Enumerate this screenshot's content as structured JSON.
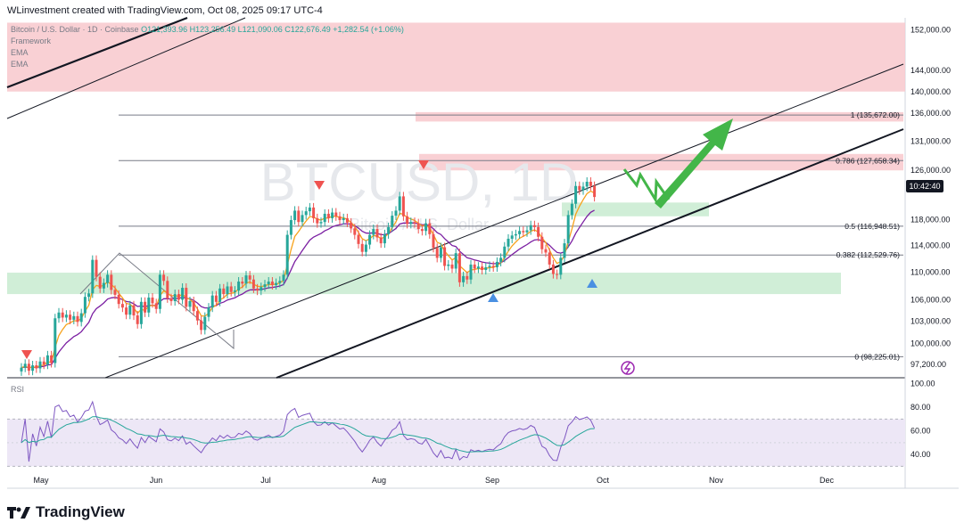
{
  "header": {
    "credit": "WLinvestment created with TradingView.com, Oct 08, 2025 09:17 UTC-4"
  },
  "legend": {
    "symbol": "Bitcoin / U.S. Dollar · 1D · Coinbase",
    "ohlc": "O121,393.96 H123,256.49 L121,090.06 C122,676.49 +1,282.54 (+1.06%)",
    "indicators": [
      "Framework",
      "EMA",
      "EMA"
    ]
  },
  "watermark": "BTCUSD, 1D",
  "watermark_sub": "Bitcoin / U.S. Dollar",
  "current_time_badge": "10:42:40",
  "rsi_label": "RSI",
  "brand": "TradingView",
  "colors": {
    "up": "#26a69a",
    "down": "#ef5350",
    "ema_fast": "#f7a21b",
    "ema_slow": "#7b1fa2",
    "supply": "#f8c8cc",
    "demand": "#c8ebd0",
    "arrow": "#43b649",
    "rsi": "#7e57c2",
    "rsi_ma": "#26a69a"
  },
  "chart_data": {
    "type": "candlestick",
    "price_axis": {
      "ticks": [
        152000,
        144000,
        140000,
        136000,
        131000,
        126000,
        118000,
        114000,
        110000,
        106000,
        103000,
        100000,
        97200
      ],
      "tick_labels": [
        "152,000.00",
        "144,000.00",
        "140,000.00",
        "136,000.00",
        "131,000.00",
        "126,000.00",
        "118,000.00",
        "114,000.00",
        "110,000.00",
        "106,000.00",
        "103,000.00",
        "100,000.00",
        "97,200.00"
      ],
      "range": [
        95500,
        154500
      ]
    },
    "time_axis": {
      "labels": [
        "May",
        "Jun",
        "Jul",
        "Aug",
        "Sep",
        "Oct",
        "Nov",
        "Dec"
      ]
    },
    "fibonacci": [
      {
        "level": "1",
        "price": 135672.0,
        "label": "1 (135,672.00)"
      },
      {
        "level": "0.786",
        "price": 127658.34,
        "label": "0.786 (127,658.34)"
      },
      {
        "level": "0.5",
        "price": 116948.51,
        "label": "0.5 (116,948.51)"
      },
      {
        "level": "0.382",
        "price": 112529.76,
        "label": "0.382 (112,529.76)"
      },
      {
        "level": "0",
        "price": 98225.01,
        "label": "0 (98,225.01)"
      }
    ],
    "zones": [
      {
        "kind": "supply",
        "from": 140000,
        "to": 153500
      },
      {
        "kind": "supply",
        "from": 134500,
        "to": 136200
      },
      {
        "kind": "supply",
        "from": 126000,
        "to": 128800
      },
      {
        "kind": "demand",
        "from": 106800,
        "to": 109900
      },
      {
        "kind": "demand",
        "from": 118500,
        "to": 120700
      }
    ],
    "closes": [
      96800,
      97300,
      96400,
      97100,
      96700,
      97600,
      97200,
      98400,
      97400,
      103400,
      104200,
      103500,
      103900,
      103200,
      103700,
      102900,
      104100,
      106400,
      106900,
      111800,
      109300,
      107600,
      108400,
      109600,
      107400,
      106700,
      105400,
      104900,
      103900,
      105200,
      103800,
      102600,
      105700,
      104200,
      106300,
      105500,
      104700,
      109600,
      108700,
      106200,
      105800,
      106800,
      106000,
      107700,
      105000,
      105800,
      104400,
      103100,
      101800,
      103600,
      104900,
      106600,
      105700,
      107600,
      106800,
      107900,
      107100,
      107300,
      108600,
      108300,
      109500,
      108900,
      107600,
      107300,
      107800,
      108200,
      108600,
      108100,
      108400,
      108700,
      109600,
      115600,
      117900,
      119400,
      117600,
      118700,
      119300,
      119900,
      118200,
      117400,
      117600,
      118900,
      118200,
      119100,
      118500,
      117900,
      118200,
      117500,
      116600,
      115600,
      114200,
      113000,
      114100,
      115600,
      116500,
      115200,
      114300,
      115700,
      116800,
      118600,
      119400,
      121700,
      118500,
      117300,
      117600,
      117400,
      116500,
      116200,
      117400,
      115700,
      113600,
      112100,
      113700,
      110900,
      111100,
      110500,
      112800,
      108500,
      109400,
      108900,
      111100,
      110500,
      110800,
      110300,
      110700,
      110900,
      110700,
      111500,
      112100,
      113800,
      115000,
      115500,
      115700,
      116200,
      116000,
      116300,
      117100,
      116800,
      115300,
      113400,
      112900,
      111100,
      109700,
      109600,
      112100,
      114300,
      118700,
      120500,
      123400,
      122700,
      123300,
      124100,
      123400,
      121600
    ]
  }
}
